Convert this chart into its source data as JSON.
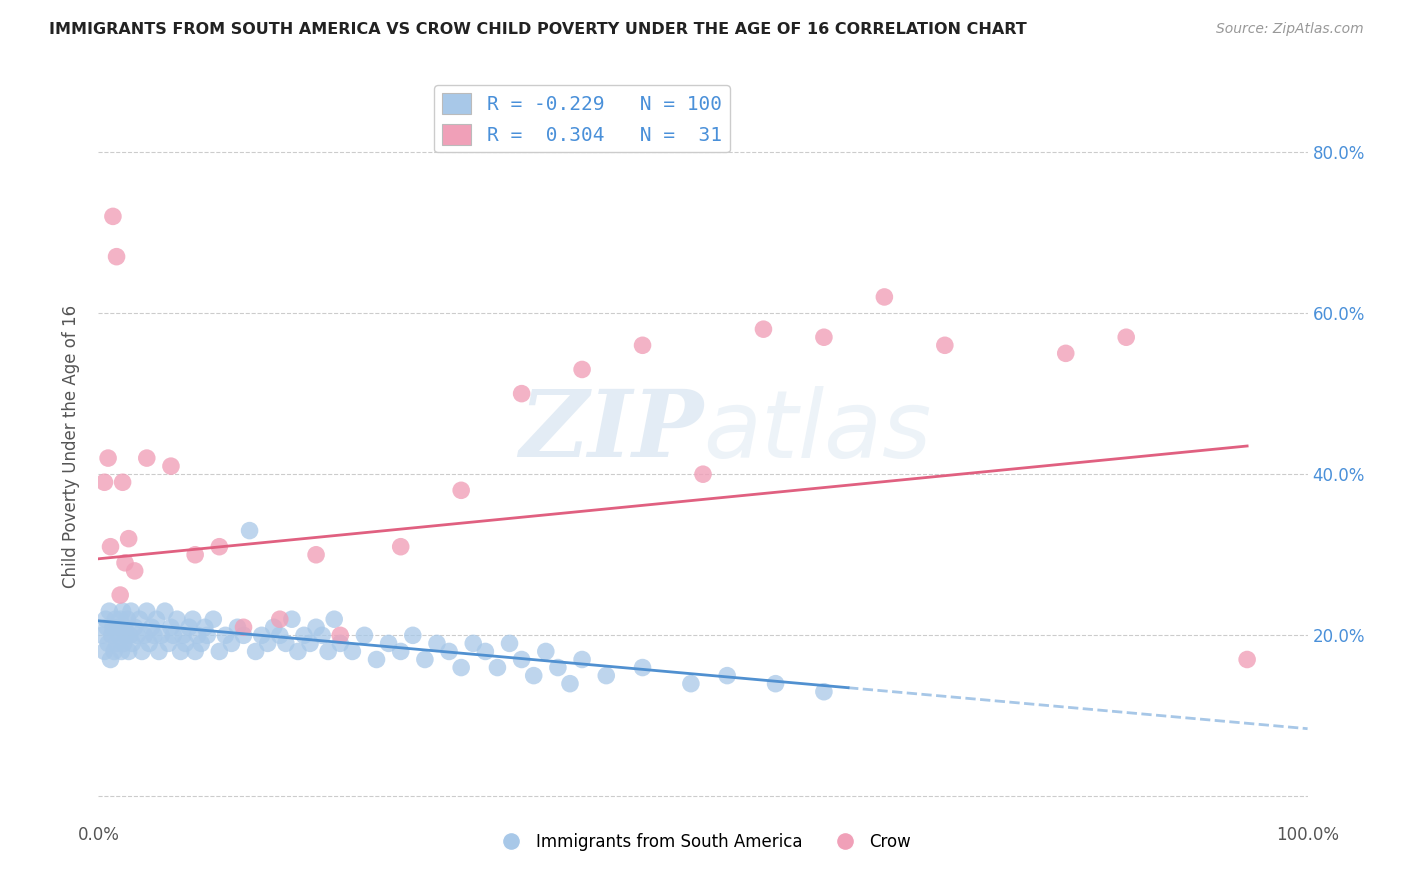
{
  "title": "IMMIGRANTS FROM SOUTH AMERICA VS CROW CHILD POVERTY UNDER THE AGE OF 16 CORRELATION CHART",
  "source": "Source: ZipAtlas.com",
  "ylabel": "Child Poverty Under the Age of 16",
  "xlim": [
    0,
    1.0
  ],
  "ylim": [
    -0.03,
    0.9
  ],
  "yticks": [
    0.0,
    0.2,
    0.4,
    0.6,
    0.8
  ],
  "xticks": [
    0.0,
    0.25,
    0.5,
    0.75,
    1.0
  ],
  "xtick_labels": [
    "0.0%",
    "",
    "",
    "",
    "100.0%"
  ],
  "right_ytick_labels": [
    "",
    "20.0%",
    "40.0%",
    "60.0%",
    "80.0%"
  ],
  "legend_r1": "R = -0.229",
  "legend_n1": "N = 100",
  "legend_r2": "R =  0.304",
  "legend_n2": "N =  31",
  "blue_color": "#a8c8e8",
  "pink_color": "#f0a0b8",
  "blue_line_color": "#5090d0",
  "pink_line_color": "#e06080",
  "blue_scatter_x": [
    0.003,
    0.005,
    0.006,
    0.007,
    0.008,
    0.009,
    0.01,
    0.011,
    0.012,
    0.013,
    0.014,
    0.015,
    0.016,
    0.017,
    0.018,
    0.019,
    0.02,
    0.021,
    0.022,
    0.023,
    0.024,
    0.025,
    0.026,
    0.027,
    0.028,
    0.03,
    0.032,
    0.034,
    0.036,
    0.038,
    0.04,
    0.042,
    0.044,
    0.046,
    0.048,
    0.05,
    0.052,
    0.055,
    0.058,
    0.06,
    0.062,
    0.065,
    0.068,
    0.07,
    0.072,
    0.075,
    0.078,
    0.08,
    0.082,
    0.085,
    0.088,
    0.09,
    0.095,
    0.1,
    0.105,
    0.11,
    0.115,
    0.12,
    0.125,
    0.13,
    0.135,
    0.14,
    0.145,
    0.15,
    0.155,
    0.16,
    0.165,
    0.17,
    0.175,
    0.18,
    0.185,
    0.19,
    0.195,
    0.2,
    0.21,
    0.22,
    0.23,
    0.24,
    0.25,
    0.26,
    0.27,
    0.28,
    0.29,
    0.3,
    0.31,
    0.32,
    0.33,
    0.34,
    0.35,
    0.36,
    0.37,
    0.38,
    0.39,
    0.4,
    0.42,
    0.45,
    0.49,
    0.52,
    0.56,
    0.6
  ],
  "blue_scatter_y": [
    0.2,
    0.18,
    0.22,
    0.21,
    0.19,
    0.23,
    0.17,
    0.2,
    0.21,
    0.18,
    0.22,
    0.19,
    0.21,
    0.2,
    0.22,
    0.18,
    0.23,
    0.19,
    0.21,
    0.2,
    0.22,
    0.18,
    0.2,
    0.23,
    0.19,
    0.21,
    0.2,
    0.22,
    0.18,
    0.2,
    0.23,
    0.19,
    0.21,
    0.2,
    0.22,
    0.18,
    0.2,
    0.23,
    0.19,
    0.21,
    0.2,
    0.22,
    0.18,
    0.2,
    0.19,
    0.21,
    0.22,
    0.18,
    0.2,
    0.19,
    0.21,
    0.2,
    0.22,
    0.18,
    0.2,
    0.19,
    0.21,
    0.2,
    0.33,
    0.18,
    0.2,
    0.19,
    0.21,
    0.2,
    0.19,
    0.22,
    0.18,
    0.2,
    0.19,
    0.21,
    0.2,
    0.18,
    0.22,
    0.19,
    0.18,
    0.2,
    0.17,
    0.19,
    0.18,
    0.2,
    0.17,
    0.19,
    0.18,
    0.16,
    0.19,
    0.18,
    0.16,
    0.19,
    0.17,
    0.15,
    0.18,
    0.16,
    0.14,
    0.17,
    0.15,
    0.16,
    0.14,
    0.15,
    0.14,
    0.13
  ],
  "pink_scatter_x": [
    0.005,
    0.008,
    0.01,
    0.012,
    0.015,
    0.018,
    0.02,
    0.022,
    0.025,
    0.03,
    0.04,
    0.06,
    0.08,
    0.1,
    0.12,
    0.15,
    0.18,
    0.2,
    0.25,
    0.3,
    0.35,
    0.4,
    0.45,
    0.5,
    0.55,
    0.6,
    0.65,
    0.7,
    0.8,
    0.85,
    0.95
  ],
  "pink_scatter_y": [
    0.39,
    0.42,
    0.31,
    0.72,
    0.67,
    0.25,
    0.39,
    0.29,
    0.32,
    0.28,
    0.42,
    0.41,
    0.3,
    0.31,
    0.21,
    0.22,
    0.3,
    0.2,
    0.31,
    0.38,
    0.5,
    0.53,
    0.56,
    0.4,
    0.58,
    0.57,
    0.62,
    0.56,
    0.55,
    0.57,
    0.17
  ],
  "blue_line_x0": 0.0,
  "blue_line_x1": 0.62,
  "blue_line_y0": 0.218,
  "blue_line_y1": 0.135,
  "pink_line_x0": 0.0,
  "pink_line_x1": 0.95,
  "pink_line_y0": 0.295,
  "pink_line_y1": 0.435,
  "watermark_zip": "ZIP",
  "watermark_atlas": "atlas",
  "background_color": "#ffffff",
  "grid_color": "#cccccc"
}
